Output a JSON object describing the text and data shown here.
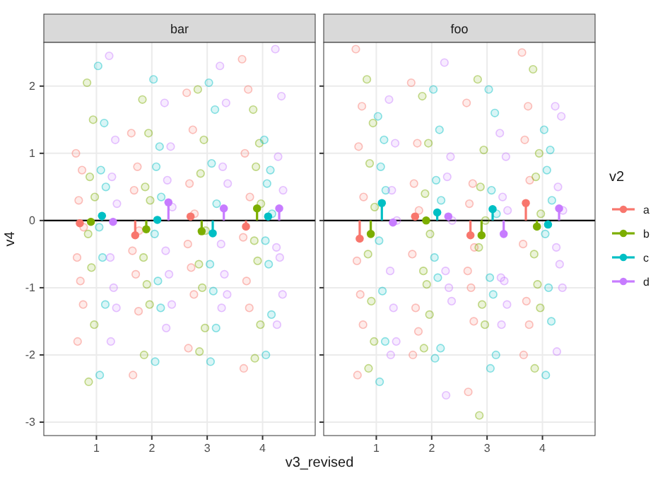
{
  "chart_data": [
    {
      "type": "scatter",
      "title": "bar",
      "xlabel": "v3_revised",
      "ylabel": "v4",
      "xlim": [
        0.05,
        4.95
      ],
      "xticks": [
        1,
        2,
        3,
        4
      ],
      "ylim": [
        -3.2,
        2.65
      ],
      "yticks": [
        -3,
        -2,
        -1,
        0,
        1,
        2
      ],
      "grid": true,
      "marker": "circle",
      "ref_lines": [
        {
          "axis": "y",
          "value": 0,
          "color": "#000000"
        }
      ],
      "series": [
        {
          "type": "scatter",
          "color": "#f8766d",
          "x": [
            0.63,
            0.74,
            0.68,
            0.77,
            0.65,
            0.71,
            0.76,
            0.66,
            1.63,
            1.74,
            1.68,
            1.77,
            1.65,
            1.71,
            1.76,
            1.66,
            2.63,
            2.74,
            2.68,
            2.77,
            2.65,
            2.71,
            2.76,
            2.66,
            3.63,
            3.74,
            3.68,
            3.77,
            3.65,
            3.71,
            3.76,
            3.66
          ],
          "values": [
            1.0,
            0.75,
            0.3,
            -0.1,
            -0.55,
            -0.9,
            -1.25,
            -1.8,
            1.3,
            0.8,
            0.45,
            -0.15,
            -0.45,
            -0.8,
            -1.35,
            -2.3,
            1.9,
            1.35,
            0.55,
            0.1,
            -0.35,
            -0.7,
            -1.1,
            -1.9,
            2.4,
            1.95,
            1.0,
            0.35,
            -0.25,
            -0.9,
            -1.3,
            -2.2
          ]
        },
        {
          "type": "scatter",
          "color": "#7cae00",
          "x": [
            0.83,
            0.94,
            0.88,
            0.97,
            0.85,
            0.91,
            0.96,
            0.86,
            1.83,
            1.94,
            1.88,
            1.97,
            1.85,
            1.91,
            1.96,
            1.86,
            2.83,
            2.94,
            2.88,
            2.97,
            2.85,
            2.91,
            2.96,
            2.86,
            3.83,
            3.94,
            3.88,
            3.97,
            3.85,
            3.91,
            3.96,
            3.86
          ],
          "values": [
            2.05,
            1.5,
            0.65,
            0.35,
            -0.2,
            -0.7,
            -1.55,
            -2.4,
            1.8,
            1.3,
            0.5,
            0.3,
            -0.55,
            -0.95,
            -1.25,
            -2.0,
            1.95,
            1.2,
            0.7,
            -0.15,
            -0.65,
            -1.0,
            -1.6,
            -1.95,
            1.65,
            1.15,
            0.8,
            0.25,
            -0.3,
            -0.6,
            -1.55,
            -2.05
          ]
        },
        {
          "type": "scatter",
          "color": "#00bfc4",
          "x": [
            1.03,
            1.14,
            1.08,
            1.17,
            1.05,
            1.11,
            1.16,
            1.06,
            2.03,
            2.14,
            2.08,
            2.17,
            2.05,
            2.11,
            2.16,
            2.06,
            3.03,
            3.14,
            3.08,
            3.17,
            3.05,
            3.11,
            3.16,
            3.06,
            4.03,
            4.14,
            4.08,
            4.17,
            4.05,
            4.11,
            4.16,
            4.06
          ],
          "values": [
            2.3,
            1.45,
            0.75,
            0.5,
            -0.1,
            -0.55,
            -1.25,
            -2.3,
            2.1,
            1.1,
            0.8,
            0.35,
            -0.2,
            -0.9,
            -1.3,
            -2.1,
            2.05,
            1.65,
            0.85,
            0.25,
            -0.65,
            -1.05,
            -1.6,
            -2.1,
            1.2,
            0.75,
            0.55,
            0.1,
            -0.3,
            -0.65,
            -1.4,
            -2.0
          ]
        },
        {
          "type": "scatter",
          "color": "#c77cff",
          "x": [
            1.23,
            1.34,
            1.28,
            1.37,
            1.25,
            1.31,
            1.36,
            1.26,
            2.23,
            2.34,
            2.28,
            2.37,
            2.25,
            2.31,
            2.36,
            2.26,
            3.23,
            3.34,
            3.28,
            3.37,
            3.25,
            3.31,
            3.36,
            3.26,
            4.23,
            4.34,
            4.28,
            4.37,
            4.25,
            4.31,
            4.36,
            4.26
          ],
          "values": [
            2.45,
            1.2,
            0.65,
            0.25,
            -0.55,
            -1.0,
            -1.3,
            -1.8,
            1.75,
            1.1,
            0.6,
            0.2,
            -0.45,
            -0.8,
            -1.25,
            -1.6,
            2.3,
            1.75,
            0.8,
            0.55,
            -0.35,
            -0.8,
            -1.1,
            -1.3,
            2.55,
            1.85,
            0.95,
            0.45,
            -0.4,
            -0.55,
            -1.1,
            -1.55
          ]
        },
        {
          "type": "lollipop",
          "color": "#f8766d",
          "x": [
            0.7,
            1.7,
            2.7,
            3.7
          ],
          "values": [
            -0.04,
            -0.22,
            0.06,
            -0.09
          ]
        },
        {
          "type": "lollipop",
          "color": "#7cae00",
          "x": [
            0.9,
            1.9,
            2.9,
            3.9
          ],
          "values": [
            -0.02,
            -0.13,
            -0.16,
            0.18
          ]
        },
        {
          "type": "lollipop",
          "color": "#00bfc4",
          "x": [
            1.1,
            2.1,
            3.1,
            4.1
          ],
          "values": [
            0.07,
            0.01,
            -0.19,
            0.06
          ]
        },
        {
          "type": "lollipop",
          "color": "#c77cff",
          "x": [
            1.3,
            2.3,
            3.3,
            4.3
          ],
          "values": [
            -0.02,
            0.27,
            0.18,
            0.18
          ]
        }
      ]
    },
    {
      "type": "scatter",
      "title": "foo",
      "legend_title": "v2",
      "legend": "right",
      "tick_labels": "x",
      "xlim": [
        0.05,
        4.95
      ],
      "xticks": [
        1,
        2,
        3,
        4
      ],
      "ylim": [
        -3.2,
        2.65
      ],
      "yticks": [
        -3,
        -2,
        -1,
        0,
        1,
        2
      ],
      "grid": true,
      "marker": "circle",
      "ref_lines": [
        {
          "axis": "y",
          "value": 0,
          "color": "#000000"
        }
      ],
      "series": [
        {
          "type": "scatter",
          "color": "#f8766d",
          "x": [
            0.63,
            0.74,
            0.68,
            0.77,
            0.65,
            0.71,
            0.76,
            0.66,
            1.63,
            1.74,
            1.68,
            1.77,
            1.65,
            1.71,
            1.76,
            1.66,
            2.63,
            2.74,
            2.68,
            2.77,
            2.65,
            2.71,
            2.76,
            2.66,
            3.63,
            3.74,
            3.68,
            3.77,
            3.65,
            3.71,
            3.76,
            3.66
          ],
          "values": [
            2.55,
            1.7,
            1.1,
            0.35,
            -0.6,
            -1.1,
            -1.55,
            -2.3,
            2.05,
            1.15,
            0.55,
            0.15,
            -0.5,
            -1.3,
            -1.65,
            -2.0,
            1.75,
            0.55,
            0.25,
            -0.4,
            -0.75,
            -1.0,
            -1.5,
            -2.55,
            2.5,
            1.7,
            1.2,
            0.6,
            -0.35,
            -1.2,
            -1.55,
            -2.0
          ]
        },
        {
          "type": "scatter",
          "color": "#7cae00",
          "x": [
            0.83,
            0.94,
            0.88,
            0.97,
            0.85,
            0.91,
            0.96,
            0.86,
            1.83,
            1.94,
            1.88,
            1.97,
            1.85,
            1.91,
            1.96,
            1.86,
            2.83,
            2.94,
            2.88,
            2.97,
            2.85,
            2.91,
            2.96,
            2.86,
            3.83,
            3.94,
            3.88,
            3.97,
            3.85,
            3.91,
            3.96,
            3.86
          ],
          "values": [
            2.1,
            1.45,
            0.85,
            0.2,
            -0.5,
            -1.2,
            -1.8,
            -2.2,
            1.85,
            1.15,
            0.4,
            -0.2,
            -0.75,
            -0.95,
            -1.4,
            -1.9,
            2.1,
            1.05,
            0.5,
            0.0,
            -0.4,
            -1.25,
            -1.55,
            -2.9,
            2.25,
            1.0,
            0.65,
            0.1,
            -0.5,
            -0.95,
            -1.3,
            -2.2
          ]
        },
        {
          "type": "scatter",
          "color": "#00bfc4",
          "x": [
            1.03,
            1.14,
            1.08,
            1.17,
            1.05,
            1.11,
            1.16,
            1.06,
            2.03,
            2.14,
            2.08,
            2.17,
            2.05,
            2.11,
            2.16,
            2.06,
            3.03,
            3.14,
            3.08,
            3.17,
            3.05,
            3.11,
            3.16,
            3.06,
            4.03,
            4.14,
            4.08,
            4.17,
            4.05,
            4.11,
            4.16,
            4.06
          ],
          "values": [
            1.55,
            1.2,
            0.8,
            0.45,
            -0.3,
            -1.05,
            -1.8,
            -2.4,
            1.95,
            1.35,
            0.6,
            0.3,
            -0.55,
            -0.85,
            -1.9,
            -2.05,
            1.95,
            1.6,
            0.45,
            0.1,
            -0.85,
            -1.1,
            -2.0,
            -2.2,
            1.35,
            1.05,
            0.75,
            0.3,
            -0.2,
            -1.0,
            -1.5,
            -2.3
          ]
        },
        {
          "type": "scatter",
          "color": "#c77cff",
          "x": [
            1.23,
            1.34,
            1.28,
            1.37,
            1.25,
            1.31,
            1.36,
            1.26,
            2.23,
            2.34,
            2.28,
            2.37,
            2.25,
            2.31,
            2.36,
            2.26,
            3.23,
            3.34,
            3.28,
            3.37,
            3.25,
            3.31,
            3.36,
            3.26,
            4.23,
            4.34,
            4.28,
            4.37,
            4.25,
            4.31,
            4.36,
            4.26
          ],
          "values": [
            1.8,
            1.15,
            0.45,
            0.0,
            -0.75,
            -1.3,
            -1.8,
            -2.0,
            2.35,
            0.95,
            0.65,
            0.0,
            -0.75,
            -1.0,
            -1.2,
            -2.6,
            1.3,
            0.95,
            0.35,
            0.15,
            -0.85,
            -0.9,
            -1.25,
            -1.55,
            1.7,
            1.55,
            0.5,
            0.15,
            -0.4,
            -0.65,
            -1.0,
            -1.95
          ]
        },
        {
          "type": "lollipop",
          "name": "a",
          "color": "#f8766d",
          "x": [
            0.7,
            1.7,
            2.7,
            3.7
          ],
          "values": [
            -0.27,
            0.06,
            -0.22,
            0.26
          ]
        },
        {
          "type": "lollipop",
          "name": "b",
          "color": "#7cae00",
          "x": [
            0.9,
            1.9,
            2.9,
            3.9
          ],
          "values": [
            -0.2,
            0.0,
            -0.22,
            -0.09
          ]
        },
        {
          "type": "lollipop",
          "name": "c",
          "color": "#00bfc4",
          "x": [
            1.1,
            2.1,
            3.1,
            4.1
          ],
          "values": [
            0.26,
            0.12,
            0.17,
            -0.06
          ]
        },
        {
          "type": "lollipop",
          "name": "d",
          "color": "#c77cff",
          "x": [
            1.3,
            2.3,
            3.3,
            4.3
          ],
          "values": [
            -0.03,
            0.06,
            -0.2,
            0.18
          ]
        }
      ]
    }
  ]
}
